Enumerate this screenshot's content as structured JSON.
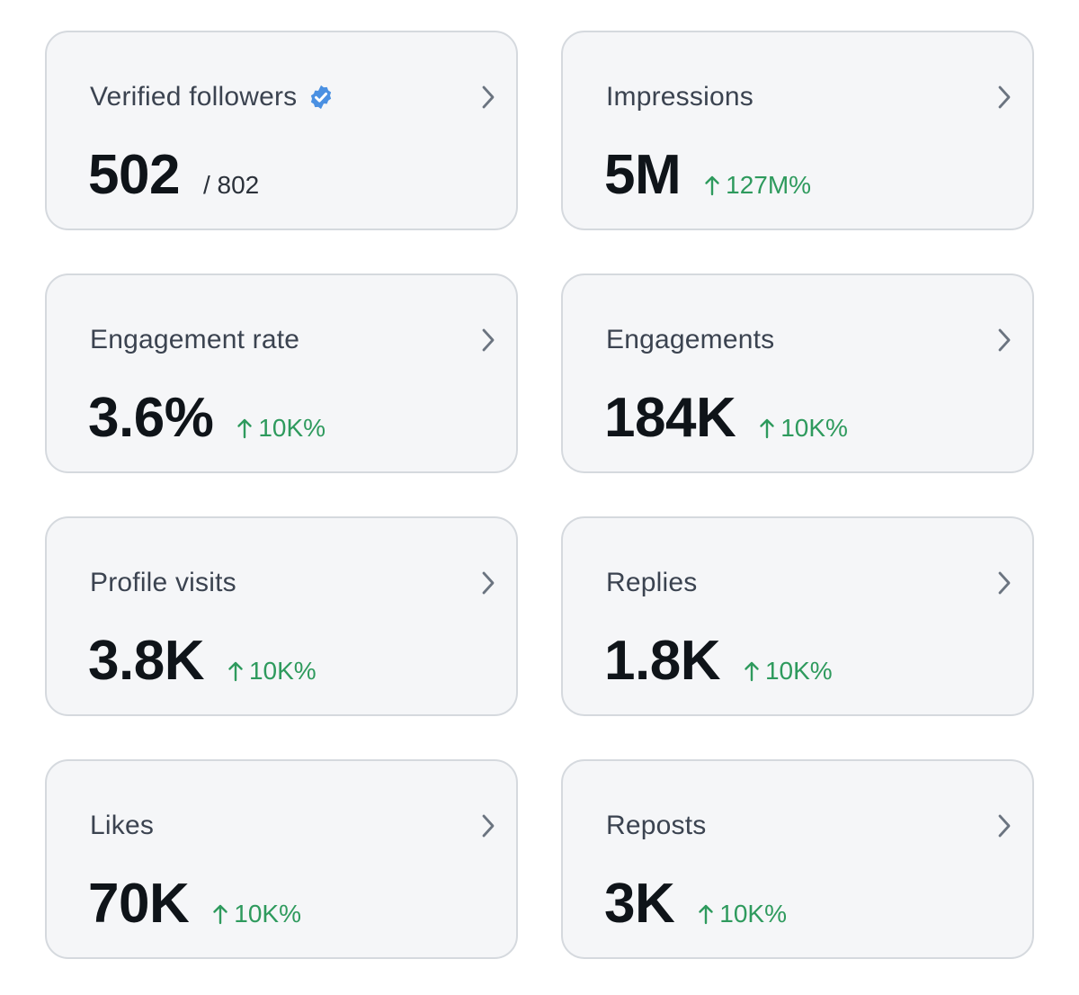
{
  "colors": {
    "card_background": "#f5f6f8",
    "card_border": "#d5d9de",
    "title_text": "#3b4350",
    "value_text": "#0f1419",
    "positive_change": "#2e9a5d",
    "verified_badge": "#4a90e2"
  },
  "cards": [
    {
      "title": "Verified followers",
      "value": "502",
      "sub_value": "/ 802",
      "verified_badge": true
    },
    {
      "title": "Impressions",
      "value": "5M",
      "change": "127M%",
      "change_direction": "up"
    },
    {
      "title": "Engagement rate",
      "value": "3.6%",
      "change": "10K%",
      "change_direction": "up"
    },
    {
      "title": "Engagements",
      "value": "184K",
      "change": "10K%",
      "change_direction": "up"
    },
    {
      "title": "Profile visits",
      "value": "3.8K",
      "change": "10K%",
      "change_direction": "up"
    },
    {
      "title": "Replies",
      "value": "1.8K",
      "change": "10K%",
      "change_direction": "up"
    },
    {
      "title": "Likes",
      "value": "70K",
      "change": "10K%",
      "change_direction": "up"
    },
    {
      "title": "Reposts",
      "value": "3K",
      "change": "10K%",
      "change_direction": "up"
    }
  ]
}
